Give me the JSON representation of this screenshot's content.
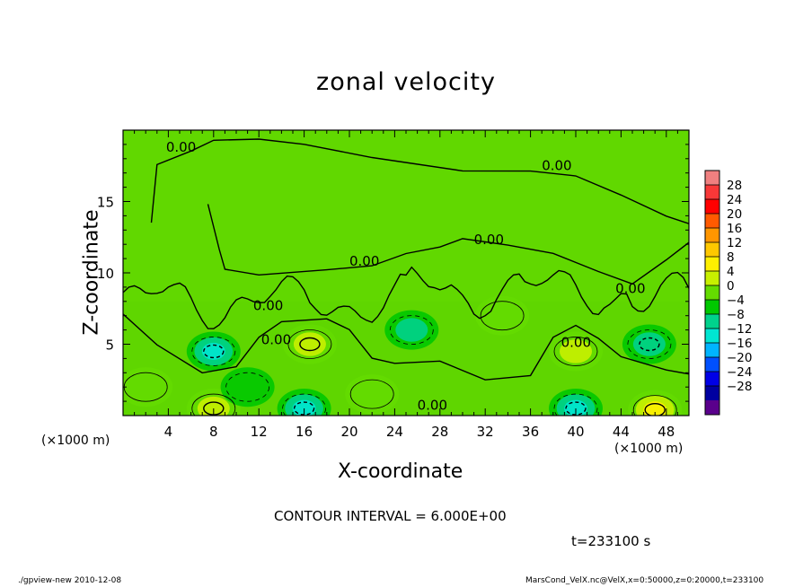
{
  "chart_data": {
    "type": "heatmap",
    "title": "zonal velocity",
    "xlabel": "X-coordinate",
    "ylabel": "Z-coordinate",
    "x_unit_label": "(×1000 m)",
    "xlim": [
      0,
      50
    ],
    "ylim": [
      0,
      20
    ],
    "x_ticks": [
      4,
      8,
      12,
      16,
      20,
      24,
      28,
      32,
      36,
      40,
      44,
      48
    ],
    "y_ticks": [
      5,
      10,
      15
    ],
    "colorbar": {
      "labels": [
        "28",
        "24",
        "20",
        "16",
        "12",
        "8",
        "4",
        "0",
        "−4",
        "−8",
        "−12",
        "−16",
        "−20",
        "−24",
        "−28"
      ],
      "colors": [
        "#f08080",
        "#f83838",
        "#ff0000",
        "#ff5a00",
        "#ff9600",
        "#ffc800",
        "#fff000",
        "#c8f000",
        "#64dc00",
        "#00c800",
        "#00d28c",
        "#00e6d2",
        "#00b4ff",
        "#0050ff",
        "#0000e6",
        "#0000a0",
        "#5a008c"
      ]
    },
    "contour_label": "0.00",
    "contour_interval_text": "CONTOUR INTERVAL = 6.000E+00",
    "time_text": "t=233100 s",
    "field_extrema": [
      {
        "x": 8,
        "z": 4.5,
        "u": -9,
        "kind": "min"
      },
      {
        "x": 16.5,
        "z": 5,
        "u": 8,
        "kind": "max"
      },
      {
        "x": 25.5,
        "z": 6,
        "u": -5,
        "kind": "min"
      },
      {
        "x": 33.5,
        "z": 7,
        "u": 4,
        "kind": "max"
      },
      {
        "x": 40,
        "z": 4.5,
        "u": 5,
        "kind": "max"
      },
      {
        "x": 46.5,
        "z": 5,
        "u": -8,
        "kind": "min"
      },
      {
        "x": 16,
        "z": 0.5,
        "u": -11,
        "kind": "min"
      },
      {
        "x": 8,
        "z": 0.5,
        "u": 7,
        "kind": "max"
      },
      {
        "x": 40,
        "z": 0.5,
        "u": -10,
        "kind": "min"
      },
      {
        "x": 47,
        "z": 0.4,
        "u": 9,
        "kind": "max"
      },
      {
        "x": 22,
        "z": 1.5,
        "u": 3,
        "kind": "max"
      },
      {
        "x": 2,
        "z": 2,
        "u": 2,
        "kind": "max"
      },
      {
        "x": 11,
        "z": 2,
        "u": -3,
        "kind": "min"
      }
    ]
  },
  "footer": {
    "left": "./gpview-new  2010-12-08",
    "right": "MarsCond_VelX.nc@VelX,x=0:50000,z=0:20000,t=233100"
  }
}
